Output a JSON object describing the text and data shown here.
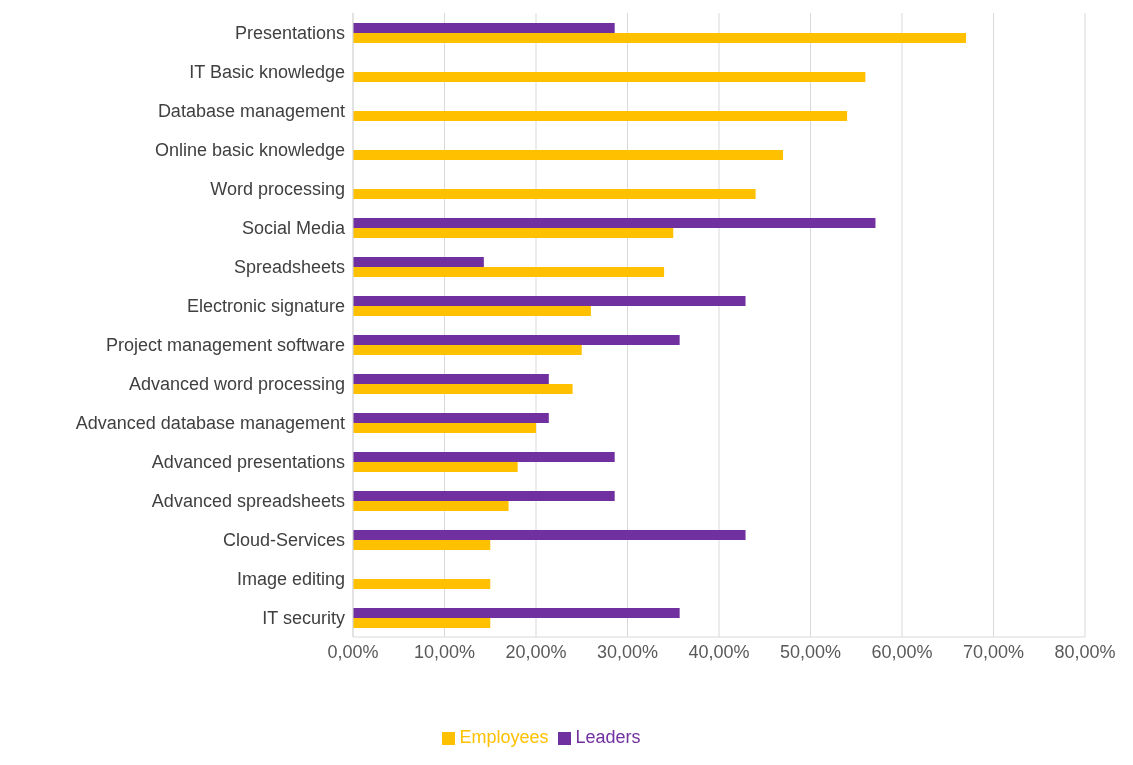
{
  "chart_data": {
    "type": "bar",
    "orientation": "horizontal",
    "categories": [
      "Presentations",
      "IT Basic knowledge",
      "Database management",
      "Online basic knowledge",
      "Word processing",
      "Social Media",
      "Spreadsheets",
      "Electronic signature",
      "Project management software",
      "Advanced word processing",
      "Advanced database management",
      "Advanced presentations",
      "Advanced spreadsheets",
      "Cloud-Services",
      "Image editing",
      "IT security"
    ],
    "series": [
      {
        "name": "Leaders",
        "color": "#7030a0",
        "values": [
          28.6,
          0,
          0,
          0,
          0,
          57.1,
          14.3,
          42.9,
          35.7,
          21.4,
          21.4,
          28.6,
          28.6,
          42.9,
          0,
          35.7
        ]
      },
      {
        "name": "Employees",
        "color": "#ffc000",
        "values": [
          67,
          56,
          54,
          47,
          44,
          35,
          34,
          26,
          25,
          24,
          20,
          18,
          17,
          15,
          15,
          15
        ]
      }
    ],
    "xlim": [
      0,
      80
    ],
    "xticks": [
      {
        "value": 0,
        "label": "0,00%"
      },
      {
        "value": 10,
        "label": "10,00%"
      },
      {
        "value": 20,
        "label": "20,00%"
      },
      {
        "value": 30,
        "label": "30,00%"
      },
      {
        "value": 40,
        "label": "40,00%"
      },
      {
        "value": 50,
        "label": "50,00%"
      },
      {
        "value": 60,
        "label": "60,00%"
      },
      {
        "value": 70,
        "label": "70,00%"
      },
      {
        "value": 80,
        "label": "80,00%"
      }
    ],
    "grid": "x",
    "legend": "bottom"
  }
}
